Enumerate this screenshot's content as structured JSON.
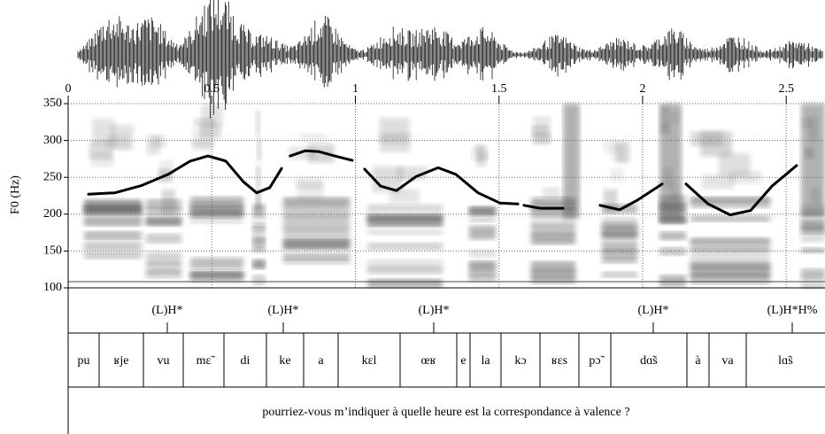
{
  "chart_data": {
    "type": "line",
    "ylabel": "F0 (Hz)",
    "x": [
      0.071,
      0.163,
      0.256,
      0.348,
      0.425,
      0.487,
      0.549,
      0.61,
      0.656,
      0.702,
      0.743,
      null,
      0.773,
      0.826,
      0.872,
      0.928,
      0.989,
      null,
      1.032,
      1.088,
      1.143,
      1.211,
      1.288,
      1.35,
      1.427,
      1.504,
      1.566,
      null,
      1.587,
      1.643,
      1.723,
      null,
      1.852,
      1.92,
      1.982,
      2.068,
      null,
      2.151,
      2.228,
      2.305,
      2.376,
      2.45,
      2.536
    ],
    "series": [
      {
        "color": "#000000",
        "values": [
          227,
          229,
          239,
          254,
          272,
          279,
          272,
          244,
          229,
          236,
          262,
          null,
          279,
          286,
          285,
          279,
          273,
          null,
          261,
          238,
          232,
          251,
          263,
          254,
          229,
          215,
          214,
          null,
          212,
          208,
          208,
          null,
          212,
          206,
          219,
          241,
          null,
          241,
          214,
          199,
          205,
          238,
          266
        ]
      }
    ],
    "xlim": [
      0,
      2.635
    ],
    "ylim": [
      100,
      350
    ],
    "xticks": [
      0,
      0.5,
      1,
      1.5,
      2,
      2.5
    ],
    "yticks": [
      100,
      150,
      200,
      250,
      300,
      350
    ],
    "grid": true
  },
  "tones": [
    "(L)H*",
    "(L)H*",
    "(L)H*",
    "(L)H*",
    "(L)H*H%"
  ],
  "syllables": [
    "pu",
    "ʁje",
    "vu",
    "mɛ̃",
    "di",
    "ke",
    "a",
    "kɛl",
    "œʁ",
    "e",
    "la",
    "kɔ",
    "ʁɛs",
    "pɔ̃",
    "dɑ̃s",
    "à",
    "va",
    "lɑ̃s"
  ],
  "sentence": "pourriez-vous m’indiquer à quelle heure est la correspondance à valence ?"
}
